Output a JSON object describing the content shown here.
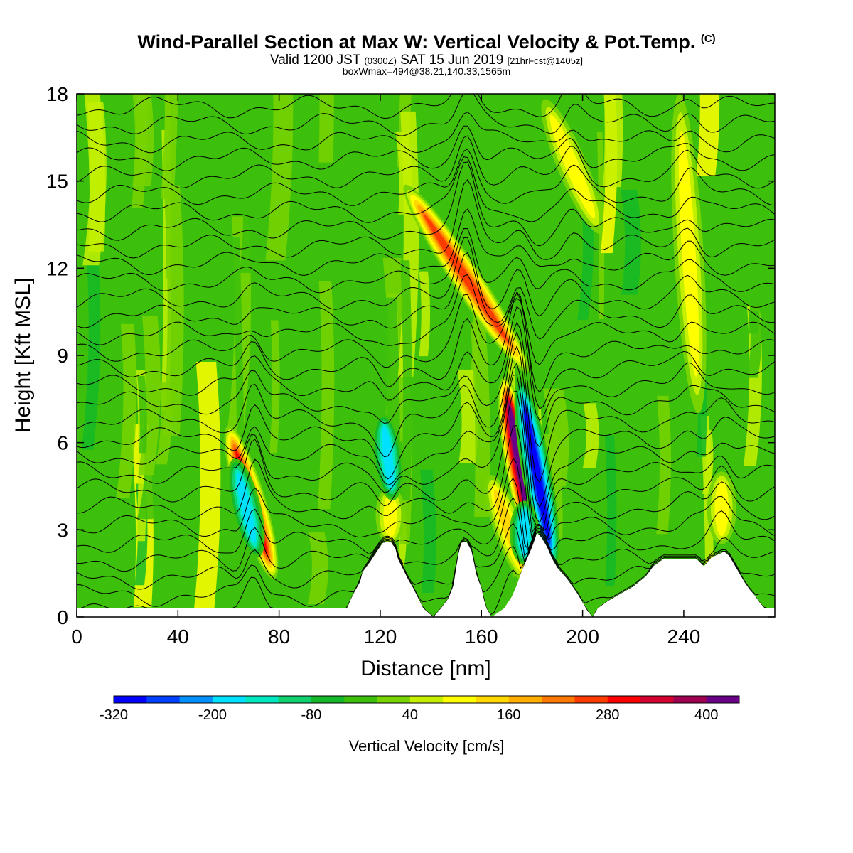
{
  "titles": {
    "main": "Wind-Parallel Section at Max W: Vertical Velocity & Pot.Temp.",
    "main_mark": "(C)",
    "valid_a": "Valid 1200 JST",
    "valid_b": "(0300Z)",
    "valid_c": "SAT 15 Jun 2019",
    "valid_d": "[21hrFcst@1405z]",
    "box": "boxWmax=494@38.21,140.33,1565m"
  },
  "chart_data": {
    "type": "heatmap",
    "title": "Wind-Parallel Section at Max W: Vertical Velocity & Pot.Temp.",
    "xlabel": "Distance [nm]",
    "ylabel": "Height [Kft MSL]",
    "xlim": [
      0,
      276
    ],
    "ylim": [
      0,
      18
    ],
    "xticks": [
      0,
      40,
      80,
      120,
      160,
      200,
      240
    ],
    "yticks": [
      0,
      3,
      6,
      9,
      12,
      15,
      18
    ],
    "colorbar": {
      "title": "Vertical Velocity [cm/s]",
      "bounds": [
        -320,
        440
      ],
      "step": 40,
      "labels": [
        -320,
        -200,
        -80,
        40,
        160,
        280,
        400
      ],
      "colors": [
        "#0000ff",
        "#0040ff",
        "#0090ff",
        "#00e0ff",
        "#00e8c0",
        "#10d070",
        "#14b828",
        "#3cc00c",
        "#78d400",
        "#c4f000",
        "#ffff00",
        "#ffd800",
        "#ffae00",
        "#ff7800",
        "#ff3c00",
        "#ff0000",
        "#d40030",
        "#a00050",
        "#6a0088"
      ]
    },
    "background_value": -40,
    "terrain": [
      [
        0,
        0.3
      ],
      [
        30,
        0.3
      ],
      [
        60,
        0.3
      ],
      [
        90,
        0.3
      ],
      [
        107,
        0.3
      ],
      [
        108,
        0.55
      ],
      [
        110,
        0.9
      ],
      [
        112,
        1.2
      ],
      [
        113,
        1.55
      ],
      [
        116,
        1.9
      ],
      [
        119,
        2.3
      ],
      [
        121,
        2.55
      ],
      [
        124,
        2.6
      ],
      [
        126,
        2.35
      ],
      [
        127,
        2.0
      ],
      [
        129,
        1.65
      ],
      [
        131,
        1.3
      ],
      [
        133,
        1.0
      ],
      [
        135,
        0.65
      ],
      [
        137,
        0.3
      ],
      [
        141,
        0.0
      ],
      [
        144,
        0.3
      ],
      [
        147,
        0.65
      ],
      [
        149,
        1.1
      ],
      [
        150,
        1.7
      ],
      [
        151,
        2.2
      ],
      [
        152,
        2.55
      ],
      [
        154,
        2.6
      ],
      [
        156,
        2.3
      ],
      [
        157,
        1.9
      ],
      [
        158,
        1.45
      ],
      [
        160,
        1.0
      ],
      [
        161,
        0.6
      ],
      [
        162,
        0.3
      ],
      [
        164,
        0.0
      ],
      [
        169,
        0.3
      ],
      [
        172,
        0.7
      ],
      [
        174,
        1.1
      ],
      [
        176,
        1.6
      ],
      [
        178,
        2.0
      ],
      [
        180,
        2.4
      ],
      [
        182,
        2.9
      ],
      [
        184,
        2.7
      ],
      [
        186,
        2.4
      ],
      [
        188,
        2.0
      ],
      [
        190,
        1.7
      ],
      [
        192,
        1.5
      ],
      [
        194,
        1.3
      ],
      [
        196,
        1.05
      ],
      [
        198,
        0.8
      ],
      [
        200,
        0.5
      ],
      [
        202,
        0.2
      ],
      [
        204,
        0.0
      ],
      [
        206,
        0.3
      ],
      [
        210,
        0.55
      ],
      [
        215,
        0.8
      ],
      [
        220,
        1.05
      ],
      [
        225,
        1.4
      ],
      [
        228,
        1.75
      ],
      [
        232,
        2.0
      ],
      [
        245,
        2.0
      ],
      [
        248,
        1.75
      ],
      [
        251,
        2.05
      ],
      [
        256,
        2.25
      ],
      [
        258,
        2.1
      ],
      [
        260,
        1.8
      ],
      [
        262,
        1.5
      ],
      [
        264,
        1.2
      ],
      [
        266,
        0.95
      ],
      [
        268,
        0.75
      ],
      [
        270,
        0.5
      ],
      [
        272,
        0.3
      ],
      [
        276,
        0.3
      ]
    ],
    "updrafts": [
      {
        "x": 69,
        "z_min": 1.2,
        "z_max": 6.7,
        "w": 300,
        "tilt": 0.5
      },
      {
        "x": 154,
        "z_min": 7.8,
        "z_max": 15.5,
        "w": 260,
        "tilt": 1.1
      },
      {
        "x": 175,
        "z_min": 2.3,
        "z_max": 8.3,
        "w": 440,
        "tilt": 0.3
      },
      {
        "x": 171,
        "z_min": 1.0,
        "z_max": 5.0,
        "w": 130,
        "tilt": 0.6
      },
      {
        "x": 124,
        "z_min": 2.5,
        "z_max": 4.5,
        "w": 90,
        "tilt": 0.0
      },
      {
        "x": 196,
        "z_min": 13.0,
        "z_max": 18.0,
        "w": 100,
        "tilt": 0.7
      },
      {
        "x": 242,
        "z_min": 7.0,
        "z_max": 18.0,
        "w": 80,
        "tilt": 0.1
      },
      {
        "x": 255,
        "z_min": 2.5,
        "z_max": 5.0,
        "w": 110,
        "tilt": 0.0
      }
    ],
    "downdrafts": [
      {
        "x": 182,
        "z_min": 1.5,
        "z_max": 8.3,
        "w": -300,
        "tilt": 0.3
      },
      {
        "x": 177,
        "z_min": 1.8,
        "z_max": 4.0,
        "w": -180,
        "tilt": 0.0
      },
      {
        "x": 123,
        "z_min": 4.0,
        "z_max": 7.0,
        "w": -170,
        "tilt": 0.2
      },
      {
        "x": 67,
        "z_min": 2.0,
        "z_max": 5.5,
        "w": -170,
        "tilt": 0.4
      }
    ],
    "theta_contours": {
      "count": 30,
      "z_start": 0.15,
      "z_spacing": 0.6,
      "units": "C"
    }
  },
  "colors": {
    "frame": "#000000",
    "contour": "#000000",
    "terrain": "#ffffff"
  }
}
